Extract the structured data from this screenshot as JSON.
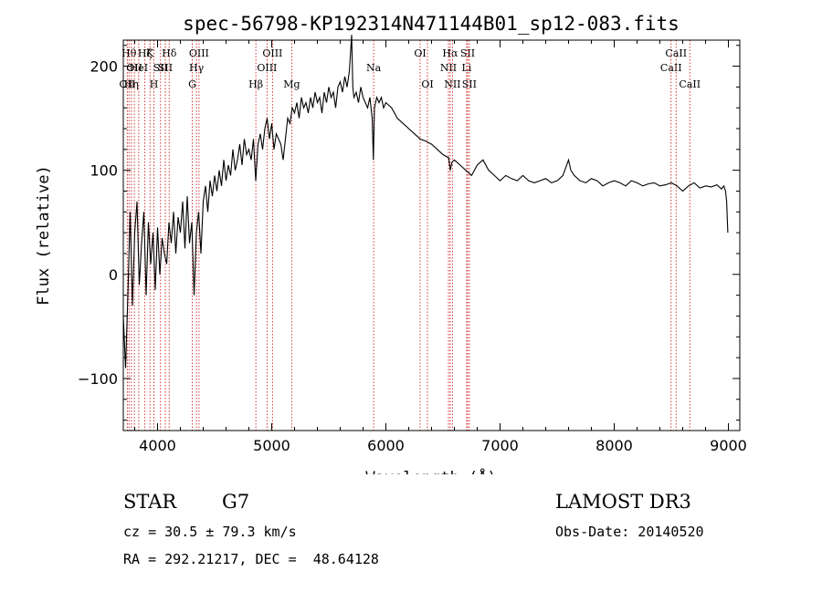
{
  "chart_data": {
    "type": "line",
    "title": "spec-56798-KP192314N471144B01_sp12-083.fits",
    "xlabel": "Wavelength (Å)",
    "ylabel": "Flux (relative)",
    "xlim": [
      3700,
      9100
    ],
    "ylim": [
      -150,
      225
    ],
    "x_ticks": [
      4000,
      5000,
      6000,
      7000,
      8000,
      9000
    ],
    "x_tick_labels": [
      "4000",
      "5000",
      "6000",
      "7000",
      "8000",
      "9000"
    ],
    "y_ticks": [
      -100,
      0,
      100,
      200
    ],
    "y_tick_labels": [
      "−100",
      "0",
      "100",
      "200"
    ],
    "grid": false,
    "series": [
      {
        "name": "spectrum",
        "color": "#000000",
        "x": [
          3700,
          3720,
          3740,
          3760,
          3780,
          3800,
          3820,
          3840,
          3860,
          3880,
          3900,
          3920,
          3940,
          3960,
          3980,
          4000,
          4020,
          4040,
          4060,
          4080,
          4100,
          4120,
          4140,
          4160,
          4180,
          4200,
          4220,
          4240,
          4260,
          4280,
          4300,
          4320,
          4340,
          4360,
          4380,
          4400,
          4420,
          4440,
          4460,
          4480,
          4500,
          4520,
          4540,
          4560,
          4580,
          4600,
          4620,
          4640,
          4660,
          4680,
          4700,
          4720,
          4740,
          4760,
          4780,
          4800,
          4820,
          4840,
          4860,
          4880,
          4900,
          4920,
          4940,
          4960,
          4980,
          5000,
          5020,
          5040,
          5060,
          5080,
          5100,
          5120,
          5140,
          5160,
          5180,
          5200,
          5220,
          5240,
          5260,
          5280,
          5300,
          5320,
          5340,
          5360,
          5380,
          5400,
          5420,
          5440,
          5460,
          5480,
          5500,
          5520,
          5540,
          5560,
          5580,
          5600,
          5620,
          5640,
          5660,
          5680,
          5700,
          5710,
          5720,
          5740,
          5760,
          5780,
          5800,
          5820,
          5840,
          5860,
          5880,
          5890,
          5900,
          5920,
          5940,
          5960,
          5980,
          6000,
          6050,
          6100,
          6150,
          6200,
          6250,
          6300,
          6350,
          6400,
          6450,
          6500,
          6550,
          6563,
          6580,
          6600,
          6650,
          6700,
          6750,
          6800,
          6850,
          6900,
          6950,
          7000,
          7050,
          7100,
          7150,
          7200,
          7250,
          7300,
          7350,
          7400,
          7450,
          7500,
          7550,
          7600,
          7620,
          7650,
          7700,
          7750,
          7800,
          7850,
          7900,
          7950,
          8000,
          8050,
          8100,
          8150,
          8200,
          8250,
          8300,
          8350,
          8400,
          8450,
          8500,
          8550,
          8600,
          8650,
          8700,
          8750,
          8800,
          8850,
          8900,
          8940,
          8960,
          8975,
          8985,
          8995
        ],
        "y": [
          -40,
          -90,
          -20,
          60,
          -30,
          40,
          70,
          -10,
          30,
          60,
          -20,
          50,
          10,
          40,
          -15,
          45,
          0,
          35,
          20,
          10,
          50,
          30,
          60,
          20,
          55,
          40,
          70,
          25,
          75,
          30,
          50,
          -20,
          40,
          60,
          20,
          70,
          85,
          60,
          90,
          75,
          95,
          80,
          100,
          85,
          110,
          90,
          105,
          95,
          120,
          100,
          110,
          125,
          105,
          130,
          115,
          120,
          110,
          130,
          90,
          125,
          135,
          120,
          140,
          150,
          130,
          145,
          120,
          135,
          130,
          125,
          110,
          130,
          150,
          145,
          160,
          155,
          165,
          150,
          170,
          160,
          165,
          155,
          170,
          160,
          175,
          165,
          170,
          155,
          175,
          165,
          180,
          170,
          175,
          160,
          180,
          185,
          175,
          190,
          180,
          195,
          230,
          180,
          170,
          175,
          165,
          180,
          170,
          165,
          160,
          170,
          150,
          110,
          160,
          170,
          165,
          170,
          160,
          165,
          160,
          150,
          145,
          140,
          135,
          130,
          128,
          125,
          120,
          115,
          112,
          100,
          108,
          110,
          105,
          100,
          95,
          105,
          110,
          100,
          95,
          90,
          95,
          92,
          90,
          95,
          90,
          88,
          90,
          92,
          88,
          90,
          95,
          110,
          100,
          95,
          90,
          88,
          92,
          90,
          85,
          88,
          90,
          88,
          85,
          90,
          88,
          85,
          87,
          88,
          85,
          86,
          88,
          85,
          80,
          85,
          88,
          83,
          85,
          84,
          86,
          82,
          85,
          80,
          70,
          40
        ]
      }
    ],
    "line_markers": [
      {
        "wavelength": 3735,
        "label": "OII",
        "row": 3
      },
      {
        "wavelength": 3750,
        "label": "Hθ",
        "row": 1
      },
      {
        "wavelength": 3770,
        "label": "Hη",
        "row": 3
      },
      {
        "wavelength": 3797,
        "label": "OII",
        "row": 2
      },
      {
        "wavelength": 3835,
        "label": "HeI",
        "row": 2
      },
      {
        "wavelength": 3889,
        "label": "Hζ",
        "row": 1
      },
      {
        "wavelength": 3934,
        "label": "K",
        "row": 1
      },
      {
        "wavelength": 3968,
        "label": "H",
        "row": 3
      },
      {
        "wavelength": 4026,
        "label": "SII",
        "row": 2
      },
      {
        "wavelength": 4102,
        "label": "Hδ",
        "row": 1
      },
      {
        "wavelength": 4068,
        "label": "SII",
        "row": 2
      },
      {
        "wavelength": 4304,
        "label": "G",
        "row": 3
      },
      {
        "wavelength": 4341,
        "label": "Hγ",
        "row": 2
      },
      {
        "wavelength": 4363,
        "label": "OIII",
        "row": 1
      },
      {
        "wavelength": 4861,
        "label": "Hβ",
        "row": 3
      },
      {
        "wavelength": 4959,
        "label": "OIII",
        "row": 2
      },
      {
        "wavelength": 5007,
        "label": "OIII",
        "row": 1
      },
      {
        "wavelength": 5175,
        "label": "Mg",
        "row": 3
      },
      {
        "wavelength": 5893,
        "label": "Na",
        "row": 2
      },
      {
        "wavelength": 6300,
        "label": "OI",
        "row": 1
      },
      {
        "wavelength": 6364,
        "label": "OI",
        "row": 3
      },
      {
        "wavelength": 6548,
        "label": "NII",
        "row": 2
      },
      {
        "wavelength": 6563,
        "label": "Hα",
        "row": 1
      },
      {
        "wavelength": 6583,
        "label": "NII",
        "row": 3
      },
      {
        "wavelength": 6707,
        "label": "Li",
        "row": 2
      },
      {
        "wavelength": 6716,
        "label": "SII",
        "row": 1
      },
      {
        "wavelength": 6731,
        "label": "SII",
        "row": 3
      },
      {
        "wavelength": 8498,
        "label": "CaII",
        "row": 2
      },
      {
        "wavelength": 8542,
        "label": "CaII",
        "row": 1
      },
      {
        "wavelength": 8662,
        "label": "CaII",
        "row": 3
      }
    ]
  },
  "info": {
    "class": "STAR",
    "subclass": "G7",
    "redshift": "cz = 30.5 ± 79.3 km/s",
    "coords": "RA = 292.21217, DEC =  48.64128",
    "survey": "LAMOST DR3",
    "obs_date": "Obs-Date: 20140520"
  }
}
